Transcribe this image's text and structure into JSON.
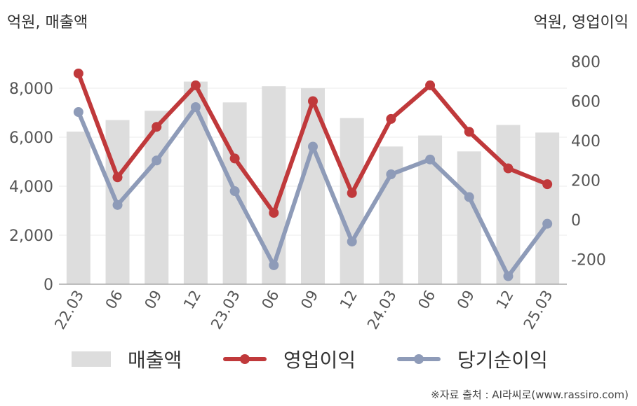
{
  "header": {
    "left_unit": "억원, 매출액",
    "right_unit": "억원, 영업이익"
  },
  "legend": {
    "revenue": "매출액",
    "operating_profit": "영업이익",
    "net_income": "당기순이익"
  },
  "source": "※자료 출처 : AI라씨로(www.rassiro.com)",
  "colors": {
    "revenue": "#dddddd",
    "operating_profit": "#c0393b",
    "net_income": "#8e9bb8"
  },
  "chart_data": {
    "type": "bar",
    "categories": [
      "22.03",
      "06",
      "09",
      "12",
      "23.03",
      "06",
      "09",
      "12",
      "24.03",
      "06",
      "09",
      "12",
      "25.03"
    ],
    "y_left": {
      "ylim": [
        0,
        9000
      ],
      "ticks": [
        "0",
        "2,000",
        "4,000",
        "6,000",
        "8,000"
      ]
    },
    "y_right": {
      "ylim": [
        -320,
        900
      ],
      "ticks": [
        "-200",
        "0",
        "200",
        "400",
        "600",
        "800"
      ]
    },
    "grid": true,
    "series": [
      {
        "name": "매출액",
        "kind": "bar",
        "axis": "left",
        "values": [
          6230,
          6700,
          7080,
          8270,
          7420,
          8080,
          8000,
          6780,
          5620,
          6070,
          5420,
          6500,
          6190
        ]
      },
      {
        "name": "영업이익",
        "kind": "line",
        "axis": "right",
        "values": [
          740,
          215,
          470,
          680,
          310,
          35,
          600,
          135,
          510,
          680,
          445,
          260,
          180
        ]
      },
      {
        "name": "당기순이익",
        "kind": "line",
        "axis": "right",
        "values": [
          545,
          75,
          300,
          570,
          145,
          -230,
          370,
          -110,
          230,
          305,
          115,
          -285,
          -20
        ]
      }
    ]
  }
}
